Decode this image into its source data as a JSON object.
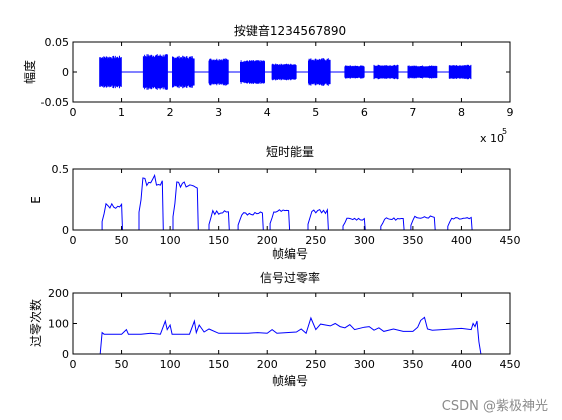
{
  "chart_data": [
    {
      "type": "line",
      "title": "按键音1234567890",
      "xlabel": "",
      "ylabel": "幅度",
      "xlim": [
        0,
        9
      ],
      "ylim": [
        -0.05,
        0.05
      ],
      "x_scale_label": "x 10",
      "x_scale_exponent": "5",
      "xticks": [
        "0",
        "1",
        "2",
        "3",
        "4",
        "5",
        "6",
        "7",
        "8",
        "9"
      ],
      "yticks": [
        "-0.05",
        "0",
        "0.05"
      ],
      "series_color": "#0000ff",
      "bursts": [
        {
          "x": [
            0.55,
            1.0
          ],
          "amplitude": 0.027
        },
        {
          "x": [
            1.45,
            1.95
          ],
          "amplitude": 0.03
        },
        {
          "x": [
            2.05,
            2.5
          ],
          "amplitude": 0.027
        },
        {
          "x": [
            2.8,
            3.2
          ],
          "amplitude": 0.023
        },
        {
          "x": [
            3.45,
            3.95
          ],
          "amplitude": 0.02
        },
        {
          "x": [
            4.1,
            4.6
          ],
          "amplitude": 0.014
        },
        {
          "x": [
            4.85,
            5.3
          ],
          "amplitude": 0.023
        },
        {
          "x": [
            5.6,
            6.0
          ],
          "amplitude": 0.011
        },
        {
          "x": [
            6.2,
            6.7
          ],
          "amplitude": 0.012
        },
        {
          "x": [
            6.9,
            7.5
          ],
          "amplitude": 0.011
        },
        {
          "x": [
            7.75,
            8.2
          ],
          "amplitude": 0.012
        }
      ]
    },
    {
      "type": "line",
      "title": "短时能量",
      "xlabel": "帧编号",
      "ylabel": "E",
      "xlim": [
        0,
        450
      ],
      "ylim": [
        0,
        0.5
      ],
      "xticks": [
        "0",
        "50",
        "100",
        "150",
        "200",
        "250",
        "300",
        "350",
        "400",
        "450"
      ],
      "yticks": [
        "0",
        "0.5"
      ],
      "series_color": "#0000ff",
      "segments": [
        {
          "x": [
            30,
            50
          ],
          "level": 0.22
        },
        {
          "x": [
            68,
            92
          ],
          "level": 0.45
        },
        {
          "x": [
            103,
            128
          ],
          "level": 0.4
        },
        {
          "x": [
            140,
            160
          ],
          "level": 0.16
        },
        {
          "x": [
            170,
            195
          ],
          "level": 0.15
        },
        {
          "x": [
            203,
            222
          ],
          "level": 0.17
        },
        {
          "x": [
            242,
            262
          ],
          "level": 0.17
        },
        {
          "x": [
            278,
            300
          ],
          "level": 0.1
        },
        {
          "x": [
            317,
            340
          ],
          "level": 0.1
        },
        {
          "x": [
            348,
            372
          ],
          "level": 0.12
        },
        {
          "x": [
            386,
            410
          ],
          "level": 0.11
        }
      ]
    },
    {
      "type": "line",
      "title": "信号过零率",
      "xlabel": "帧编号",
      "ylabel": "过零次数",
      "xlim": [
        0,
        450
      ],
      "ylim": [
        0,
        200
      ],
      "xticks": [
        "0",
        "50",
        "100",
        "150",
        "200",
        "250",
        "300",
        "350",
        "400",
        "450"
      ],
      "yticks": [
        "0",
        "100",
        "200"
      ],
      "series_color": "#0000ff",
      "x": [
        25,
        28,
        30,
        32,
        40,
        50,
        55,
        57,
        60,
        70,
        80,
        90,
        95,
        97,
        100,
        102,
        110,
        120,
        125,
        127,
        130,
        135,
        140,
        150,
        160,
        170,
        180,
        190,
        200,
        205,
        210,
        220,
        230,
        235,
        240,
        245,
        250,
        255,
        260,
        265,
        270,
        275,
        280,
        285,
        290,
        300,
        305,
        310,
        315,
        320,
        330,
        340,
        350,
        355,
        358,
        362,
        365,
        370,
        380,
        390,
        400,
        410,
        412,
        414,
        416,
        418,
        420
      ],
      "y": [
        0,
        0,
        70,
        65,
        65,
        65,
        80,
        65,
        65,
        65,
        68,
        65,
        108,
        80,
        95,
        65,
        65,
        65,
        108,
        70,
        95,
        72,
        82,
        68,
        68,
        68,
        68,
        70,
        68,
        80,
        68,
        70,
        72,
        82,
        68,
        118,
        80,
        98,
        95,
        92,
        100,
        90,
        86,
        96,
        80,
        88,
        90,
        78,
        86,
        74,
        82,
        74,
        74,
        88,
        110,
        120,
        82,
        78,
        80,
        82,
        84,
        80,
        100,
        90,
        108,
        40,
        0
      ]
    }
  ],
  "watermark": "CSDN @紫极神光"
}
